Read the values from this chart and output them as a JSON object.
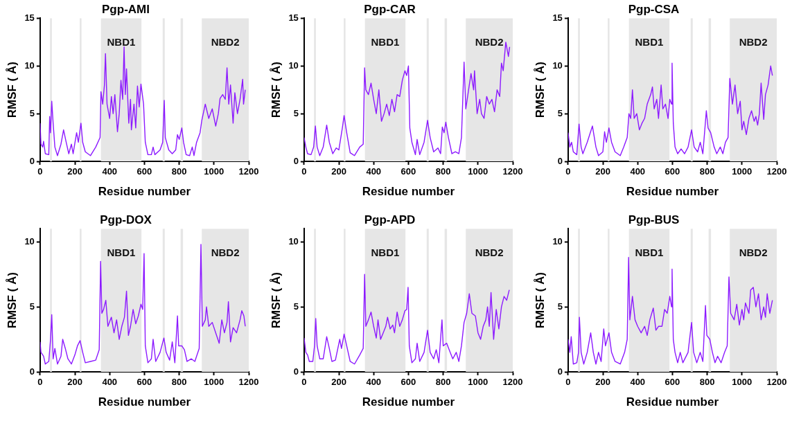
{
  "chart_data": [
    {
      "type": "line",
      "title": "Pgp-AMI",
      "xlabel": "Residue number",
      "ylabel": "RMSF ( Å)",
      "xlim": [
        0,
        1200
      ],
      "xticks": [
        0,
        200,
        400,
        600,
        800,
        1000,
        1200
      ],
      "ylim": [
        0,
        15
      ],
      "yticks": [
        0,
        5,
        10,
        15
      ],
      "grid": false,
      "marker": "none",
      "line_style": "solid",
      "bands": [
        {
          "axis": "x",
          "from": 57,
          "to": 68,
          "color": "#e6e6e6"
        },
        {
          "axis": "x",
          "from": 228,
          "to": 238,
          "color": "#e6e6e6"
        },
        {
          "axis": "x",
          "from": 350,
          "to": 583,
          "label": "NBD1",
          "color": "#e6e6e6"
        },
        {
          "axis": "x",
          "from": 705,
          "to": 717,
          "color": "#e6e6e6"
        },
        {
          "axis": "x",
          "from": 808,
          "to": 822,
          "color": "#e6e6e6"
        },
        {
          "axis": "x",
          "from": 930,
          "to": 1200,
          "label": "NBD2",
          "color": "#e6e6e6"
        }
      ],
      "series": [
        {
          "color": "#8c1aff",
          "x": [
            0,
            5,
            15,
            20,
            30,
            50,
            55,
            60,
            67,
            75,
            85,
            100,
            120,
            135,
            150,
            165,
            180,
            190,
            210,
            220,
            235,
            245,
            260,
            290,
            320,
            345,
            350,
            360,
            370,
            376,
            385,
            400,
            410,
            420,
            430,
            445,
            455,
            465,
            475,
            483,
            490,
            497,
            510,
            520,
            525,
            540,
            550,
            560,
            570,
            580,
            595,
            605,
            620,
            640,
            650,
            660,
            690,
            705,
            714,
            720,
            740,
            760,
            780,
            790,
            800,
            815,
            825,
            840,
            860,
            875,
            885,
            900,
            920,
            930,
            950,
            970,
            990,
            1010,
            1025,
            1035,
            1050,
            1065,
            1075,
            1085,
            1095,
            1110,
            1120,
            1135,
            1150,
            1165,
            1170,
            1180
          ],
          "values": [
            4.0,
            1.8,
            1.5,
            2.1,
            0.8,
            0.7,
            4.7,
            3.0,
            6.3,
            4.0,
            1.5,
            0.6,
            1.8,
            3.3,
            2.0,
            0.8,
            1.8,
            0.8,
            3.0,
            2.0,
            4.0,
            2.0,
            1.0,
            0.6,
            1.5,
            2.5,
            7.3,
            6.0,
            8.0,
            11.3,
            6.0,
            4.5,
            6.8,
            5.0,
            7.0,
            3.1,
            5.0,
            8.5,
            6.5,
            12.0,
            7.0,
            9.7,
            4.0,
            6.5,
            3.3,
            6.0,
            3.5,
            7.9,
            5.7,
            8.1,
            6.0,
            2.0,
            0.7,
            0.7,
            1.5,
            0.7,
            1.2,
            2.0,
            6.4,
            2.5,
            1.2,
            0.8,
            1.2,
            2.8,
            2.3,
            3.5,
            2.0,
            0.7,
            0.6,
            1.5,
            0.6,
            2.0,
            3.0,
            4.3,
            6.0,
            4.5,
            5.5,
            3.7,
            5.0,
            6.6,
            7.0,
            6.5,
            9.8,
            6.0,
            8.0,
            4.0,
            7.2,
            5.0,
            6.5,
            8.6,
            6.0,
            7.5
          ]
        }
      ]
    },
    {
      "type": "line",
      "title": "Pgp-CAR",
      "xlabel": "Residue number",
      "ylabel": "RMSF ( Å)",
      "xlim": [
        0,
        1200
      ],
      "xticks": [
        0,
        200,
        400,
        600,
        800,
        1000,
        1200
      ],
      "ylim": [
        0,
        15
      ],
      "yticks": [
        0,
        5,
        10,
        15
      ],
      "grid": false,
      "marker": "none",
      "line_style": "solid",
      "bands": [
        {
          "axis": "x",
          "from": 57,
          "to": 68,
          "color": "#e6e6e6"
        },
        {
          "axis": "x",
          "from": 228,
          "to": 238,
          "color": "#e6e6e6"
        },
        {
          "axis": "x",
          "from": 350,
          "to": 583,
          "label": "NBD1",
          "color": "#e6e6e6"
        },
        {
          "axis": "x",
          "from": 705,
          "to": 717,
          "color": "#e6e6e6"
        },
        {
          "axis": "x",
          "from": 808,
          "to": 822,
          "color": "#e6e6e6"
        },
        {
          "axis": "x",
          "from": 930,
          "to": 1200,
          "label": "NBD2",
          "color": "#e6e6e6"
        }
      ],
      "series": [
        {
          "color": "#8c1aff",
          "x": [
            0,
            10,
            20,
            40,
            55,
            65,
            75,
            90,
            110,
            130,
            145,
            165,
            185,
            200,
            220,
            230,
            245,
            265,
            290,
            320,
            340,
            348,
            355,
            370,
            385,
            400,
            415,
            430,
            445,
            460,
            475,
            490,
            505,
            520,
            535,
            550,
            565,
            580,
            590,
            600,
            608,
            620,
            640,
            650,
            665,
            690,
            710,
            725,
            745,
            770,
            785,
            795,
            805,
            815,
            830,
            850,
            870,
            890,
            905,
            920,
            930,
            950,
            960,
            975,
            980,
            995,
            1010,
            1020,
            1035,
            1050,
            1065,
            1080,
            1095,
            1110,
            1125,
            1135,
            1145,
            1160,
            1175,
            1182
          ],
          "values": [
            2.5,
            1.5,
            0.8,
            0.7,
            1.5,
            3.7,
            1.5,
            0.6,
            1.5,
            3.8,
            2.0,
            0.8,
            1.4,
            1.2,
            3.5,
            4.8,
            3.0,
            0.9,
            0.6,
            1.5,
            1.8,
            9.8,
            7.5,
            7.0,
            8.2,
            6.5,
            5.0,
            7.5,
            4.2,
            5.0,
            6.0,
            4.8,
            6.5,
            5.2,
            7.0,
            6.8,
            8.5,
            9.5,
            9.0,
            10.0,
            3.5,
            2.0,
            0.7,
            2.3,
            0.7,
            2.0,
            4.3,
            2.5,
            1.0,
            1.4,
            0.8,
            3.6,
            3.0,
            4.1,
            2.5,
            0.8,
            1.0,
            0.8,
            2.5,
            10.4,
            5.5,
            8.0,
            9.2,
            7.5,
            9.5,
            5.0,
            6.5,
            5.0,
            4.5,
            6.8,
            6.0,
            6.5,
            5.2,
            7.5,
            6.8,
            10.3,
            9.5,
            12.5,
            11.0,
            12.0
          ]
        }
      ]
    },
    {
      "type": "line",
      "title": "Pgp-CSA",
      "xlabel": "Residue number",
      "ylabel": "RMSF ( Å)",
      "xlim": [
        0,
        1200
      ],
      "xticks": [
        0,
        200,
        400,
        600,
        800,
        1000,
        1200
      ],
      "ylim": [
        0,
        15
      ],
      "yticks": [
        0,
        5,
        10,
        15
      ],
      "grid": false,
      "marker": "none",
      "line_style": "solid",
      "bands": [
        {
          "axis": "x",
          "from": 57,
          "to": 68,
          "color": "#e6e6e6"
        },
        {
          "axis": "x",
          "from": 228,
          "to": 238,
          "color": "#e6e6e6"
        },
        {
          "axis": "x",
          "from": 350,
          "to": 583,
          "label": "NBD1",
          "color": "#e6e6e6"
        },
        {
          "axis": "x",
          "from": 705,
          "to": 717,
          "color": "#e6e6e6"
        },
        {
          "axis": "x",
          "from": 808,
          "to": 822,
          "color": "#e6e6e6"
        },
        {
          "axis": "x",
          "from": 930,
          "to": 1200,
          "label": "NBD2",
          "color": "#e6e6e6"
        }
      ],
      "series": [
        {
          "color": "#8c1aff",
          "x": [
            0,
            10,
            20,
            30,
            50,
            63,
            75,
            85,
            110,
            140,
            160,
            175,
            200,
            210,
            220,
            235,
            250,
            270,
            300,
            320,
            340,
            350,
            360,
            370,
            380,
            395,
            410,
            425,
            440,
            455,
            475,
            485,
            495,
            510,
            520,
            535,
            545,
            560,
            575,
            585,
            595,
            598,
            605,
            615,
            630,
            650,
            670,
            690,
            710,
            725,
            745,
            760,
            775,
            795,
            805,
            820,
            840,
            855,
            875,
            890,
            905,
            920,
            930,
            945,
            960,
            975,
            990,
            1000,
            1010,
            1025,
            1040,
            1055,
            1070,
            1080,
            1090,
            1100,
            1110,
            1125,
            1135,
            1150,
            1165,
            1175
          ],
          "values": [
            3.0,
            1.5,
            2.0,
            1.0,
            0.7,
            3.9,
            1.5,
            0.8,
            2.0,
            3.7,
            1.5,
            0.6,
            1.0,
            3.1,
            2.0,
            3.5,
            2.0,
            1.0,
            0.6,
            1.5,
            2.5,
            5.0,
            4.5,
            7.5,
            4.5,
            5.0,
            3.3,
            4.0,
            4.5,
            6.0,
            7.0,
            7.8,
            5.5,
            6.5,
            4.5,
            8.0,
            5.5,
            6.0,
            4.5,
            6.5,
            6.0,
            10.3,
            4.0,
            1.5,
            0.8,
            1.3,
            0.8,
            1.5,
            3.3,
            1.5,
            1.0,
            2.0,
            0.8,
            5.3,
            3.5,
            3.0,
            1.5,
            0.8,
            1.5,
            0.8,
            2.0,
            2.5,
            8.7,
            6.0,
            8.0,
            5.0,
            6.3,
            3.3,
            4.2,
            2.8,
            4.5,
            5.3,
            4.2,
            4.7,
            3.8,
            5.0,
            8.2,
            4.4,
            7.0,
            8.0,
            10.0,
            9.0
          ]
        }
      ]
    },
    {
      "type": "line",
      "title": "Pgp-DOX",
      "xlabel": "Residue number",
      "ylabel": "RMSF ( Å)",
      "xlim": [
        0,
        1200
      ],
      "xticks": [
        0,
        200,
        400,
        600,
        800,
        1000,
        1200
      ],
      "ylim": [
        0,
        11
      ],
      "yticks": [
        0,
        5,
        10
      ],
      "grid": false,
      "marker": "none",
      "line_style": "solid",
      "bands": [
        {
          "axis": "x",
          "from": 57,
          "to": 68,
          "color": "#e6e6e6"
        },
        {
          "axis": "x",
          "from": 228,
          "to": 238,
          "color": "#e6e6e6"
        },
        {
          "axis": "x",
          "from": 350,
          "to": 583,
          "label": "NBD1",
          "color": "#e6e6e6"
        },
        {
          "axis": "x",
          "from": 705,
          "to": 717,
          "color": "#e6e6e6"
        },
        {
          "axis": "x",
          "from": 808,
          "to": 822,
          "color": "#e6e6e6"
        },
        {
          "axis": "x",
          "from": 930,
          "to": 1200,
          "label": "NBD2",
          "color": "#e6e6e6"
        }
      ],
      "series": [
        {
          "color": "#8c1aff",
          "x": [
            0,
            5,
            20,
            30,
            50,
            60,
            67,
            75,
            85,
            100,
            120,
            130,
            145,
            160,
            180,
            200,
            215,
            230,
            245,
            260,
            290,
            320,
            340,
            348,
            355,
            365,
            378,
            390,
            410,
            425,
            440,
            455,
            470,
            485,
            497,
            508,
            520,
            535,
            550,
            565,
            580,
            590,
            598,
            605,
            620,
            640,
            650,
            665,
            690,
            712,
            725,
            745,
            760,
            775,
            790,
            797,
            815,
            830,
            845,
            870,
            890,
            915,
            925,
            933,
            950,
            957,
            970,
            990,
            1010,
            1030,
            1045,
            1060,
            1075,
            1083,
            1095,
            1110,
            1130,
            1150,
            1160,
            1172,
            1180
          ],
          "values": [
            2.3,
            1.5,
            1.2,
            0.6,
            0.8,
            2.5,
            4.4,
            1.0,
            1.8,
            0.6,
            1.2,
            2.5,
            1.8,
            1.0,
            0.6,
            1.3,
            2.0,
            2.4,
            1.5,
            0.7,
            0.8,
            0.9,
            1.7,
            8.5,
            4.5,
            4.8,
            5.5,
            3.5,
            4.2,
            3.0,
            4.0,
            2.5,
            3.5,
            4.2,
            6.2,
            2.8,
            3.5,
            4.8,
            3.7,
            4.3,
            5.2,
            4.8,
            9.1,
            2.0,
            0.7,
            1.0,
            2.5,
            0.8,
            1.5,
            2.6,
            1.5,
            0.9,
            2.3,
            0.7,
            4.3,
            2.0,
            2.0,
            1.7,
            0.8,
            1.0,
            0.8,
            1.8,
            9.8,
            3.5,
            4.0,
            5.0,
            3.5,
            3.8,
            3.0,
            2.2,
            4.0,
            3.0,
            3.8,
            5.4,
            2.3,
            3.4,
            3.0,
            4.0,
            4.7,
            4.3,
            3.5
          ]
        }
      ]
    },
    {
      "type": "line",
      "title": "Pgp-APD",
      "xlabel": "Residue number",
      "ylabel": "RMSF ( Å)",
      "xlim": [
        0,
        1200
      ],
      "xticks": [
        0,
        200,
        400,
        600,
        800,
        1000,
        1200
      ],
      "ylim": [
        0,
        11
      ],
      "yticks": [
        0,
        5,
        10
      ],
      "grid": false,
      "marker": "none",
      "line_style": "solid",
      "bands": [
        {
          "axis": "x",
          "from": 57,
          "to": 68,
          "color": "#e6e6e6"
        },
        {
          "axis": "x",
          "from": 228,
          "to": 238,
          "color": "#e6e6e6"
        },
        {
          "axis": "x",
          "from": 350,
          "to": 583,
          "label": "NBD1",
          "color": "#e6e6e6"
        },
        {
          "axis": "x",
          "from": 705,
          "to": 717,
          "color": "#e6e6e6"
        },
        {
          "axis": "x",
          "from": 808,
          "to": 822,
          "color": "#e6e6e6"
        },
        {
          "axis": "x",
          "from": 930,
          "to": 1200,
          "label": "NBD2",
          "color": "#e6e6e6"
        }
      ],
      "series": [
        {
          "color": "#8c1aff",
          "x": [
            0,
            10,
            20,
            30,
            50,
            60,
            67,
            75,
            90,
            110,
            130,
            145,
            160,
            180,
            205,
            215,
            230,
            245,
            265,
            290,
            320,
            340,
            348,
            355,
            370,
            385,
            400,
            415,
            425,
            440,
            455,
            470,
            480,
            495,
            510,
            520,
            535,
            550,
            565,
            580,
            590,
            598,
            605,
            620,
            640,
            650,
            665,
            690,
            710,
            725,
            745,
            760,
            775,
            793,
            800,
            820,
            840,
            855,
            875,
            890,
            905,
            920,
            935,
            950,
            965,
            985,
            1000,
            1015,
            1030,
            1045,
            1055,
            1065,
            1075,
            1090,
            1105,
            1120,
            1135,
            1150,
            1165,
            1180
          ],
          "values": [
            2.6,
            1.5,
            1.3,
            0.8,
            0.8,
            2.0,
            4.1,
            2.0,
            1.0,
            1.0,
            2.7,
            1.8,
            0.8,
            0.9,
            2.5,
            1.8,
            2.9,
            2.0,
            0.8,
            0.6,
            1.3,
            1.8,
            7.5,
            3.5,
            4.0,
            4.6,
            3.5,
            2.6,
            4.0,
            2.5,
            3.0,
            3.5,
            4.2,
            3.3,
            3.6,
            3.0,
            4.6,
            3.5,
            4.0,
            4.7,
            4.8,
            6.5,
            2.0,
            0.7,
            1.0,
            2.2,
            0.8,
            1.5,
            3.2,
            1.5,
            1.0,
            1.7,
            0.7,
            4.0,
            2.0,
            2.2,
            1.5,
            1.0,
            1.5,
            0.8,
            2.0,
            3.8,
            4.5,
            6.0,
            4.5,
            4.3,
            3.0,
            2.5,
            3.5,
            4.0,
            5.0,
            3.5,
            6.1,
            2.5,
            4.8,
            3.3,
            5.0,
            5.8,
            5.5,
            6.3
          ]
        }
      ]
    },
    {
      "type": "line",
      "title": "Pgp-BUS",
      "xlabel": "Residue number",
      "ylabel": "RMSF ( Å)",
      "xlim": [
        0,
        1200
      ],
      "xticks": [
        0,
        200,
        400,
        600,
        800,
        1000,
        1200
      ],
      "ylim": [
        0,
        11
      ],
      "yticks": [
        0,
        5,
        10
      ],
      "grid": false,
      "marker": "none",
      "line_style": "solid",
      "bands": [
        {
          "axis": "x",
          "from": 57,
          "to": 68,
          "color": "#e6e6e6"
        },
        {
          "axis": "x",
          "from": 228,
          "to": 238,
          "color": "#e6e6e6"
        },
        {
          "axis": "x",
          "from": 350,
          "to": 583,
          "label": "NBD1",
          "color": "#e6e6e6"
        },
        {
          "axis": "x",
          "from": 705,
          "to": 717,
          "color": "#e6e6e6"
        },
        {
          "axis": "x",
          "from": 808,
          "to": 822,
          "color": "#e6e6e6"
        },
        {
          "axis": "x",
          "from": 930,
          "to": 1200,
          "label": "NBD2",
          "color": "#e6e6e6"
        }
      ],
      "series": [
        {
          "color": "#8c1aff",
          "x": [
            0,
            10,
            18,
            30,
            50,
            60,
            65,
            75,
            90,
            110,
            130,
            145,
            160,
            175,
            190,
            205,
            215,
            235,
            250,
            270,
            300,
            325,
            340,
            348,
            355,
            370,
            385,
            400,
            420,
            440,
            455,
            470,
            490,
            505,
            520,
            540,
            555,
            570,
            585,
            595,
            598,
            605,
            615,
            630,
            645,
            660,
            690,
            710,
            722,
            740,
            760,
            775,
            790,
            798,
            815,
            830,
            845,
            860,
            880,
            900,
            915,
            925,
            935,
            955,
            970,
            985,
            1000,
            1010,
            1020,
            1040,
            1050,
            1065,
            1080,
            1095,
            1110,
            1125,
            1135,
            1145,
            1160,
            1175
          ],
          "values": [
            2.5,
            1.5,
            2.7,
            0.6,
            0.7,
            1.5,
            4.2,
            1.5,
            0.6,
            1.5,
            3.0,
            1.5,
            0.6,
            1.5,
            0.8,
            3.3,
            2.0,
            3.0,
            1.5,
            0.8,
            0.6,
            1.5,
            2.5,
            8.8,
            4.0,
            5.8,
            4.0,
            3.5,
            3.0,
            3.5,
            2.8,
            4.0,
            4.9,
            3.2,
            3.5,
            3.5,
            4.8,
            4.5,
            5.8,
            5.0,
            7.9,
            2.5,
            1.5,
            0.7,
            1.5,
            0.7,
            1.5,
            3.8,
            1.5,
            0.7,
            1.5,
            0.8,
            5.1,
            2.8,
            2.5,
            1.5,
            0.7,
            1.2,
            0.7,
            1.5,
            2.0,
            7.3,
            4.5,
            4.0,
            5.2,
            3.6,
            4.8,
            4.0,
            5.3,
            4.5,
            6.3,
            6.5,
            5.0,
            6.0,
            4.0,
            5.0,
            4.2,
            6.0,
            4.5,
            5.5
          ]
        }
      ]
    }
  ]
}
